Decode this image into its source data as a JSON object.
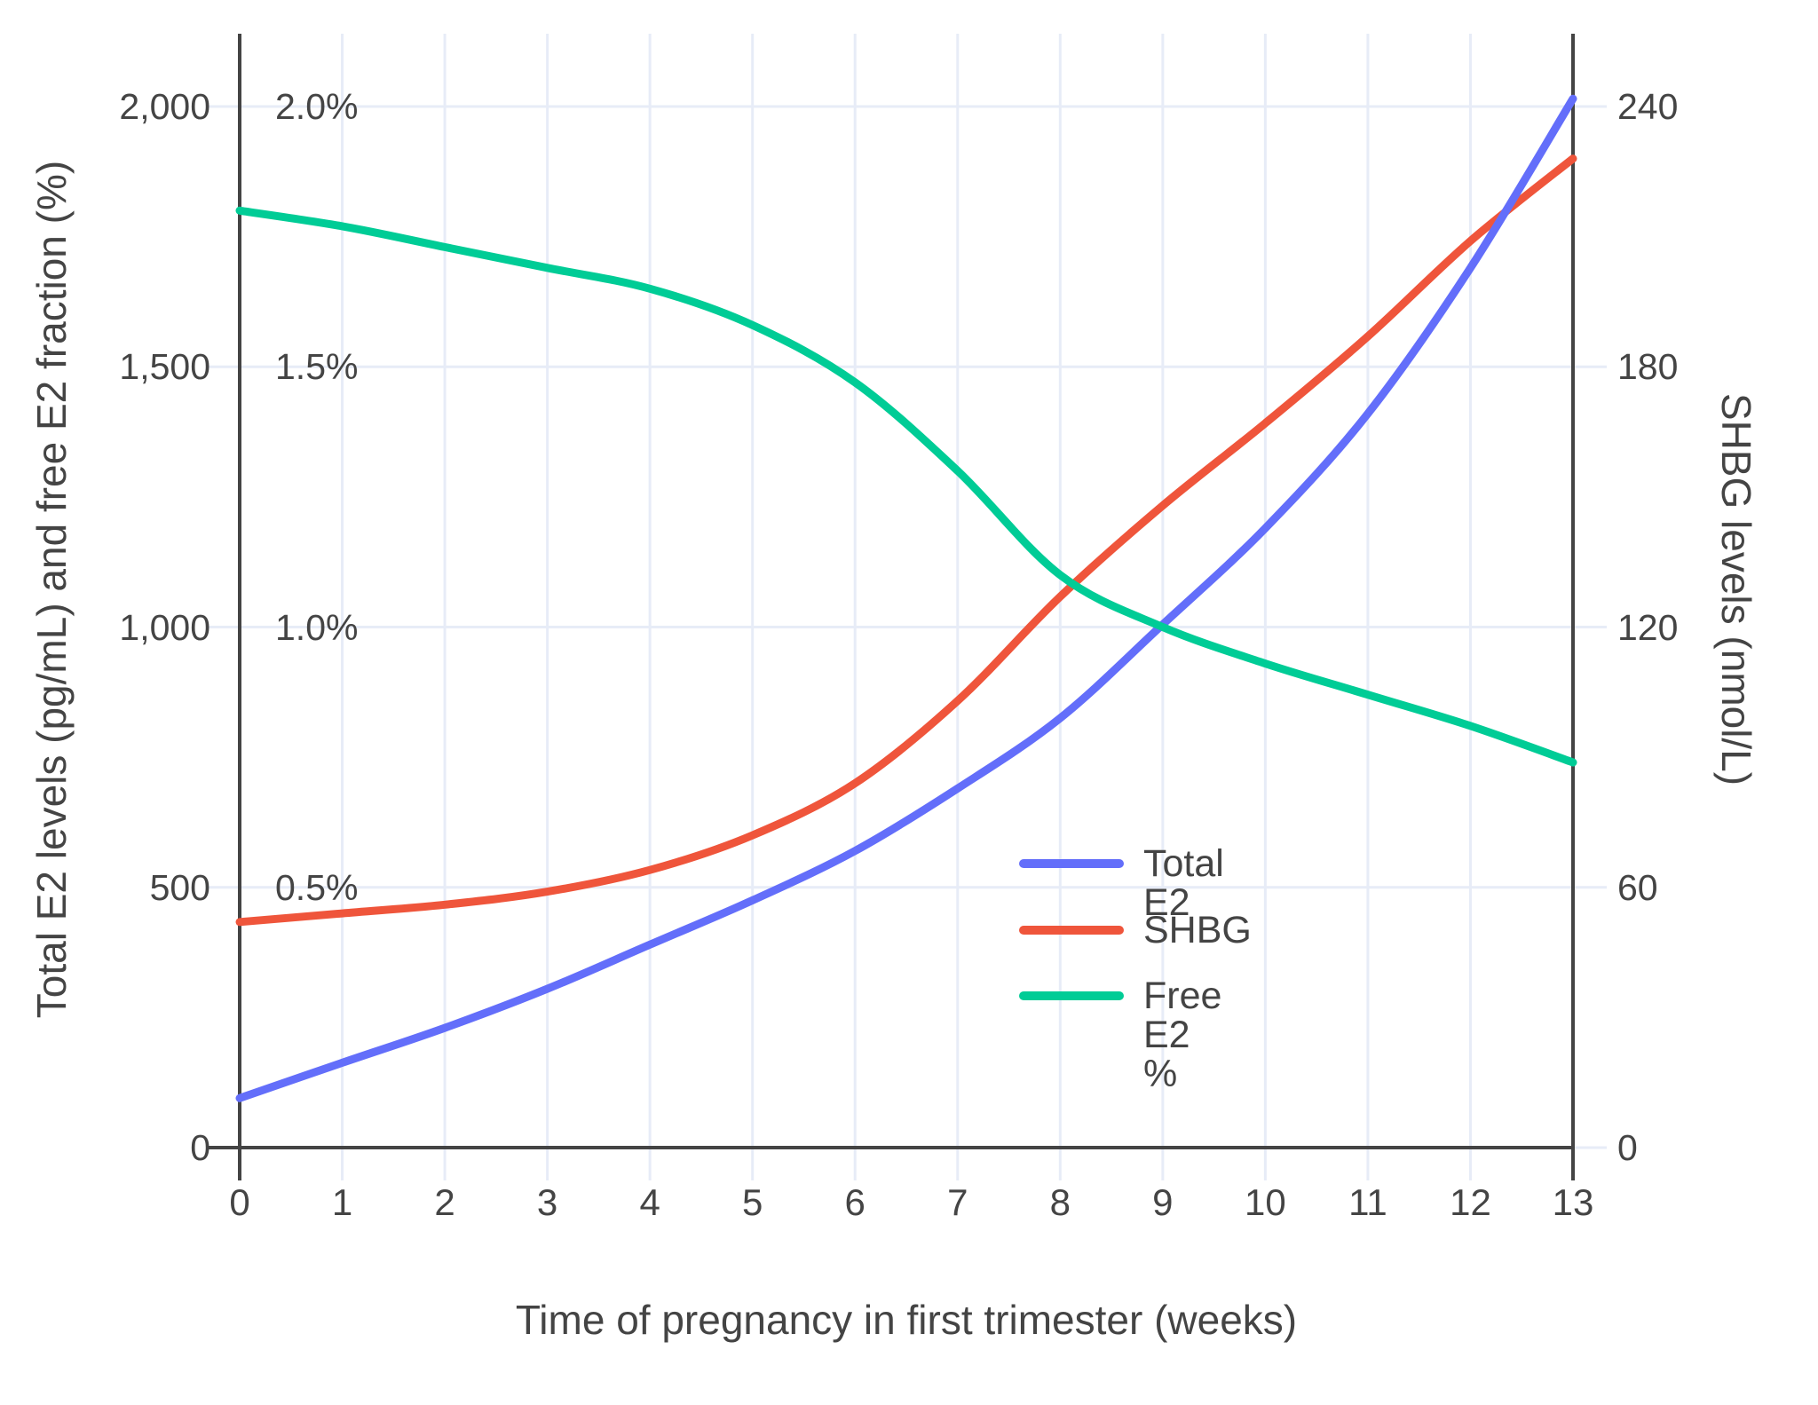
{
  "chart_data": {
    "type": "line",
    "title": "",
    "xlabel": "Time of pregnancy in first trimester (weeks)",
    "ylabel_left": "Total E2 levels (pg/mL) and free E2 fraction (%)",
    "ylabel_right": "SHBG levels (nmol/L)",
    "x": [
      0,
      1,
      2,
      3,
      4,
      5,
      6,
      7,
      8,
      9,
      10,
      11,
      12,
      13
    ],
    "series": [
      {
        "name": "Total E2",
        "color": "#636EFA",
        "axis": "left_pgml",
        "units": "pg/mL",
        "values": [
          95,
          163,
          230,
          305,
          390,
          475,
          570,
          690,
          825,
          1005,
          1190,
          1410,
          1690,
          2015
        ]
      },
      {
        "name": "SHBG",
        "color": "#EF553B",
        "axis": "right_nmol",
        "units": "nmol/L",
        "values": [
          52,
          54,
          56,
          59,
          64,
          72,
          84,
          103,
          127,
          148,
          167,
          187,
          209,
          228
        ]
      },
      {
        "name": "Free E2 %",
        "color": "#00CC96",
        "axis": "left_percent",
        "units": "%",
        "values": [
          1.8,
          1.77,
          1.73,
          1.69,
          1.65,
          1.58,
          1.47,
          1.3,
          1.1,
          1.0,
          0.93,
          0.87,
          0.81,
          0.74
        ]
      }
    ],
    "axes": {
      "left": {
        "range": [
          0,
          2000
        ],
        "tick_values": [
          0,
          500,
          1000,
          1500,
          2000
        ],
        "ticks": [
          "0",
          "500",
          "1,000",
          "1,500",
          "2,000"
        ],
        "percent_tick_values": [
          500,
          1000,
          1500,
          2000
        ],
        "percent_labels": [
          "0.5%",
          "1.0%",
          "1.5%",
          "2.0%"
        ]
      },
      "right": {
        "range": [
          0,
          240
        ],
        "tick_values": [
          0,
          60,
          120,
          180,
          240
        ],
        "ticks": [
          "0",
          "60",
          "120",
          "180",
          "240"
        ]
      },
      "x": {
        "range": [
          0,
          13
        ],
        "tick_values": [
          0,
          1,
          2,
          3,
          4,
          5,
          6,
          7,
          8,
          9,
          10,
          11,
          12,
          13
        ],
        "ticks": [
          "0",
          "1",
          "2",
          "3",
          "4",
          "5",
          "6",
          "7",
          "8",
          "9",
          "10",
          "11",
          "12",
          "13"
        ]
      }
    },
    "legend": {
      "position": "inside-middle-right",
      "entries": [
        "Total E2",
        "SHBG",
        "Free E2 %"
      ]
    },
    "grid": true
  },
  "colors": {
    "total_e2": "#636EFA",
    "shbg": "#EF553B",
    "free_e2": "#00CC96",
    "gridline": "#E7ECF7",
    "axis_line": "#444444",
    "text": "#444444",
    "background": "#FFFFFF"
  }
}
